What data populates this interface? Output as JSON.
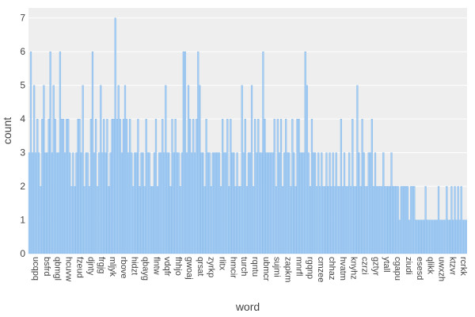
{
  "chart_data": {
    "type": "bar",
    "xlabel": "word",
    "ylabel": "count",
    "ylim": [
      0,
      7.3
    ],
    "yticks": [
      0,
      1,
      2,
      3,
      4,
      5,
      6,
      7
    ],
    "grid": true,
    "colors": {
      "bar": "#a7cff5",
      "bar_edge": "#6fa8e0",
      "plot_bg": "#eeeeee",
      "grid": "#ffffff"
    },
    "tick_labels": [
      "ucqpq",
      "bsfrd",
      "qbmgl",
      "hcuvw",
      "fzeud",
      "djnty",
      "frgjg",
      "mljyk",
      "rbove",
      "hidzt",
      "qbayg",
      "flntw",
      "vdqfr",
      "fhhjo",
      "gwoaj",
      "qrsat",
      "zyrkp",
      "rlitx",
      "hmcir",
      "turch",
      "rqntu",
      "ubmcr",
      "sujmi",
      "zapkm",
      "mnrfl",
      "rgqnp",
      "cmzee",
      "chhaz",
      "hvatm",
      "knyhz",
      "czrzi",
      "gztyr",
      "ytall",
      "cgapu",
      "ziudi",
      "esesd",
      "qlikk",
      "uwxzh",
      "ktzvr",
      "rcrkk"
    ],
    "values": [
      3,
      6,
      3,
      5,
      3,
      4,
      3,
      2,
      4,
      5,
      3,
      3,
      4,
      6,
      3,
      5,
      4,
      3,
      3,
      6,
      4,
      4,
      3,
      4,
      4,
      3,
      2,
      3,
      2,
      3,
      4,
      4,
      3,
      5,
      2,
      3,
      3,
      2,
      4,
      6,
      3,
      4,
      2,
      3,
      5,
      3,
      4,
      3,
      4,
      2,
      3,
      4,
      4,
      7,
      4,
      5,
      4,
      3,
      4,
      5,
      4,
      3,
      4,
      3,
      2,
      3,
      3,
      4,
      2,
      3,
      3,
      2,
      4,
      3,
      3,
      2,
      2,
      3,
      4,
      2,
      3,
      3,
      4,
      3,
      5,
      3,
      3,
      2,
      4,
      3,
      4,
      3,
      3,
      2,
      3,
      6,
      6,
      3,
      5,
      4,
      3,
      4,
      3,
      4,
      6,
      5,
      3,
      3,
      2,
      4,
      3,
      3,
      2,
      3,
      3,
      3,
      3,
      3,
      2,
      4,
      3,
      3,
      4,
      2,
      4,
      3,
      3,
      2,
      3,
      2,
      2,
      5,
      3,
      4,
      2,
      3,
      3,
      5,
      2,
      4,
      3,
      4,
      3,
      3,
      6,
      4,
      3,
      3,
      3,
      3,
      3,
      4,
      2,
      4,
      3,
      4,
      2,
      3,
      4,
      3,
      3,
      2,
      4,
      3,
      2,
      4,
      4,
      3,
      3,
      3,
      6,
      5,
      3,
      2,
      4,
      3,
      3,
      2,
      3,
      2,
      3,
      2,
      2,
      3,
      2,
      3,
      2,
      3,
      2,
      3,
      2,
      2,
      4,
      2,
      3,
      2,
      2,
      3,
      2,
      4,
      2,
      2,
      5,
      3,
      2,
      4,
      3,
      2,
      2,
      3,
      3,
      4,
      2,
      3,
      2,
      2,
      2,
      2,
      3,
      2,
      2,
      2,
      2,
      3,
      2,
      2,
      2,
      2,
      1,
      2,
      2,
      2,
      2,
      2,
      1,
      2,
      2,
      2,
      1,
      1,
      1,
      1,
      1,
      1,
      2,
      1,
      1,
      1,
      1,
      1,
      1,
      1,
      2,
      1,
      1,
      1,
      1,
      2,
      1,
      1,
      2,
      1,
      2,
      1,
      2,
      1,
      2,
      1,
      1,
      1
    ]
  }
}
